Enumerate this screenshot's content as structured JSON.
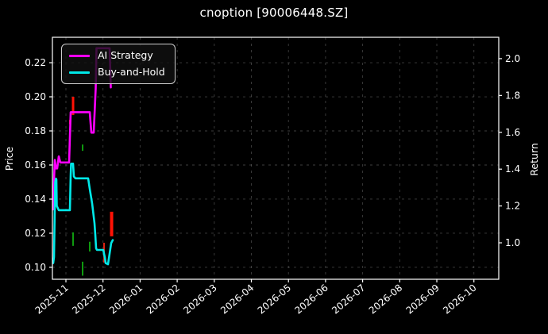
{
  "window": {
    "title": "cnoption [90006448.SZ]"
  },
  "chart_data": {
    "type": "line",
    "title": "cnoption [90006448.SZ]",
    "background": "#000000",
    "grid": true,
    "grid_style": {
      "color": "#8a8a8a",
      "alpha": 0.45,
      "dash": "3 5"
    },
    "spine_color": "#ffffff",
    "legend": {
      "position": "upper-left"
    },
    "x_axis": {
      "tick_labels": [
        "2025-11",
        "2025-12",
        "2026-01",
        "2026-02",
        "2026-03",
        "2026-04",
        "2026-05",
        "2026-06",
        "2026-07",
        "2026-08",
        "2026-09",
        "2026-10"
      ],
      "rotation": -40,
      "lim_units": [
        -0.364,
        11.67
      ]
    },
    "left_axis": {
      "label": "Price",
      "tick_labels": [
        "0.10",
        "0.12",
        "0.14",
        "0.16",
        "0.18",
        "0.20",
        "0.22"
      ],
      "lim": [
        0.093,
        0.2349
      ]
    },
    "right_axis": {
      "label": "Return",
      "tick_labels": [
        "1.0",
        "1.2",
        "1.4",
        "1.6",
        "1.8",
        "2.0"
      ],
      "lim": [
        0.802,
        2.116
      ]
    },
    "series": [
      {
        "name": "AI Strategy",
        "color": "#ff00ff",
        "axis": "left",
        "points": [
          [
            -0.343,
            0.134
          ],
          [
            -0.32,
            0.152
          ],
          [
            -0.3,
            0.163
          ],
          [
            -0.27,
            0.158
          ],
          [
            -0.235,
            0.158
          ],
          [
            -0.193,
            0.165
          ],
          [
            -0.15,
            0.1615
          ],
          [
            0.086,
            0.1615
          ],
          [
            0.128,
            0.191
          ],
          [
            0.642,
            0.191
          ],
          [
            0.664,
            0.185
          ],
          [
            0.685,
            0.179
          ],
          [
            0.749,
            0.179
          ],
          [
            0.803,
            0.205
          ],
          [
            0.824,
            0.2285
          ],
          [
            1.178,
            0.2285
          ],
          [
            1.21,
            0.2055
          ]
        ]
      },
      {
        "name": "Buy-and-Hold",
        "color": "#00e8e8",
        "axis": "left",
        "points": [
          [
            -0.343,
            0.1025
          ],
          [
            -0.321,
            0.106
          ],
          [
            -0.289,
            0.15
          ],
          [
            -0.268,
            0.152
          ],
          [
            -0.257,
            0.1515
          ],
          [
            -0.246,
            0.136
          ],
          [
            -0.193,
            0.1335
          ],
          [
            0.107,
            0.1335
          ],
          [
            0.128,
            0.154
          ],
          [
            0.139,
            0.1608
          ],
          [
            0.193,
            0.1608
          ],
          [
            0.214,
            0.1533
          ],
          [
            0.257,
            0.1522
          ],
          [
            0.6,
            0.1522
          ],
          [
            0.642,
            0.146
          ],
          [
            0.707,
            0.1375
          ],
          [
            0.771,
            0.1258
          ],
          [
            0.792,
            0.119
          ],
          [
            0.814,
            0.1112
          ],
          [
            0.835,
            0.1102
          ],
          [
            1.006,
            0.1102
          ],
          [
            1.049,
            0.1058
          ],
          [
            1.071,
            0.1025
          ],
          [
            1.135,
            0.1018
          ],
          [
            1.178,
            0.108
          ],
          [
            1.221,
            0.1142
          ],
          [
            1.263,
            0.116
          ]
        ]
      }
    ],
    "candles": [
      {
        "x": 0.107,
        "high": 0.1865,
        "low": 0.184,
        "color": "#ff1205",
        "width": 2
      },
      {
        "x": 0.193,
        "high": 0.2,
        "low": 0.1893,
        "color": "#ff1205",
        "width": 3
      },
      {
        "x": 0.45,
        "high": 0.172,
        "low": 0.1683,
        "color": "#0f9b0f",
        "width": 2
      },
      {
        "x": 0.193,
        "high": 0.1205,
        "low": 0.1126,
        "color": "#0f9b0f",
        "width": 2
      },
      {
        "x": 0.642,
        "high": 0.115,
        "low": 0.1093,
        "color": "#0f9b0f",
        "width": 2
      },
      {
        "x": 0.45,
        "high": 0.1033,
        "low": 0.0951,
        "color": "#0f9b0f",
        "width": 2
      },
      {
        "x": 1.028,
        "high": 0.1144,
        "low": 0.1028,
        "color": "#d92313",
        "width": 2
      },
      {
        "x": 1.232,
        "high": 0.1326,
        "low": 0.1182,
        "color": "#ff1205",
        "width": 4
      }
    ]
  }
}
